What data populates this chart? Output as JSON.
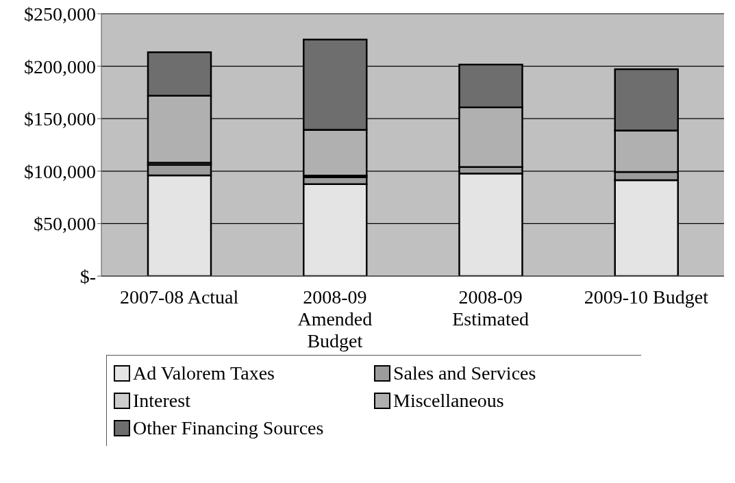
{
  "chart_data": {
    "type": "bar",
    "stacked": true,
    "categories": [
      "2007-08 Actual",
      "2008-09 Amended Budget",
      "2008-09 Estimated",
      "2009-10 Budget"
    ],
    "series": [
      {
        "name": "Ad Valorem Taxes",
        "color": "#e4e4e4",
        "values": [
          96000,
          87700,
          97800,
          91400
        ]
      },
      {
        "name": "Sales and Services",
        "color": "#9c9c9c",
        "values": [
          10000,
          6400,
          6100,
          7800
        ]
      },
      {
        "name": "Interest",
        "color": "#cccccc",
        "values": [
          2000,
          1700,
          null,
          null
        ]
      },
      {
        "name": "Miscellaneous",
        "color": "#b0b0b0",
        "values": [
          63800,
          43600,
          56800,
          39500
        ]
      },
      {
        "name": "Other Financing Sources",
        "color": "#6e6e6e",
        "values": [
          41500,
          86000,
          40800,
          58400
        ]
      }
    ],
    "ylim": [
      0,
      250000
    ],
    "yticks": [
      {
        "value": 0,
        "label": "$-"
      },
      {
        "value": 50000,
        "label": "$50,000"
      },
      {
        "value": 100000,
        "label": "$100,000"
      },
      {
        "value": 150000,
        "label": "$150,000"
      },
      {
        "value": 200000,
        "label": "$200,000"
      },
      {
        "value": 250000,
        "label": "$250,000"
      }
    ],
    "grid": "y",
    "legend": "bottom"
  }
}
